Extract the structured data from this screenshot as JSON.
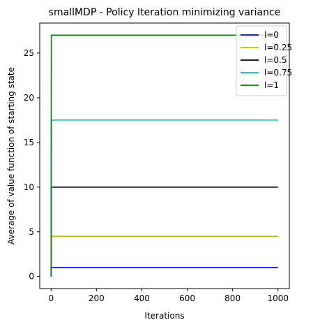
{
  "chart_data": {
    "type": "line",
    "title": "smallMDP - Policy Iteration minimizing variance",
    "xlabel": "Iterations",
    "ylabel": "Average of value function of starting state",
    "xlim": [
      -50,
      1050
    ],
    "ylim": [
      -1.35,
      28.35
    ],
    "xticks": [
      0,
      200,
      400,
      600,
      800,
      1000
    ],
    "yticks": [
      0,
      5,
      10,
      15,
      20,
      25
    ],
    "grid": false,
    "legend_position": "top-right",
    "series": [
      {
        "name": "l=0",
        "color": "#0000ff",
        "x": [
          0,
          1,
          2,
          1000
        ],
        "y": [
          0,
          1,
          1,
          1
        ]
      },
      {
        "name": "l=0.25",
        "color": "#bfbf00",
        "x": [
          0,
          1,
          2,
          1000
        ],
        "y": [
          0,
          4.5,
          4.5,
          4.5
        ]
      },
      {
        "name": "l=0.5",
        "color": "#000000",
        "x": [
          0,
          1,
          2,
          1000
        ],
        "y": [
          0,
          10,
          10,
          10
        ]
      },
      {
        "name": "l=0.75",
        "color": "#00bfbf",
        "x": [
          0,
          1,
          2,
          1000
        ],
        "y": [
          0,
          17.5,
          17.5,
          17.5
        ]
      },
      {
        "name": "l=1",
        "color": "#008000",
        "x": [
          0,
          1,
          2,
          1000
        ],
        "y": [
          0,
          27,
          27,
          27
        ]
      }
    ]
  }
}
